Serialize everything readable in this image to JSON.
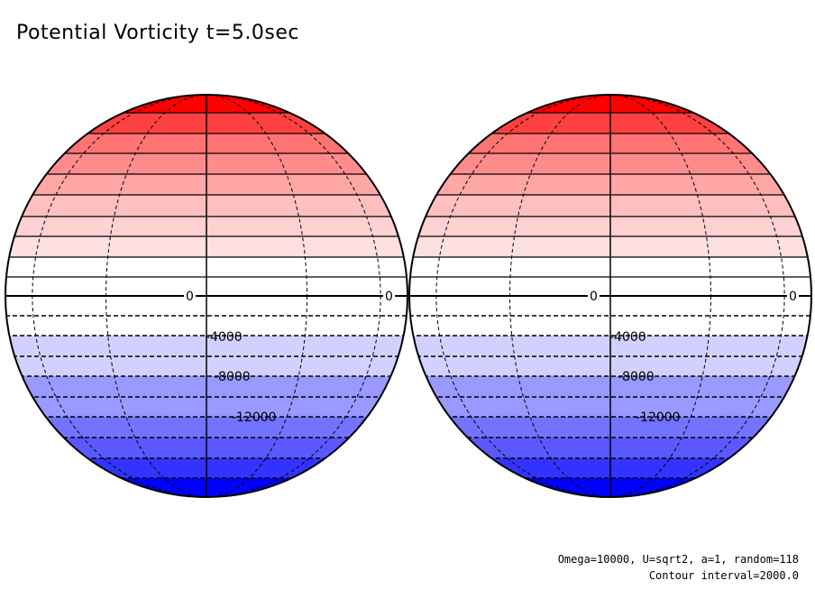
{
  "title": "Potential Vorticity t=5.0sec",
  "footer": {
    "params": "Omega=10000, U=sqrt2, a=1, random=118",
    "interval": "Contour interval=2000.0"
  },
  "contour_labels": [
    "0",
    "0",
    "-4000",
    "-8000",
    "-12000"
  ],
  "colors": {
    "positive_max": "#ff0000",
    "zero": "#ffffff",
    "negative_max": "#0000ff",
    "line": "#000000"
  },
  "globes": [
    {
      "name": "left-globe"
    },
    {
      "name": "right-globe"
    }
  ]
}
